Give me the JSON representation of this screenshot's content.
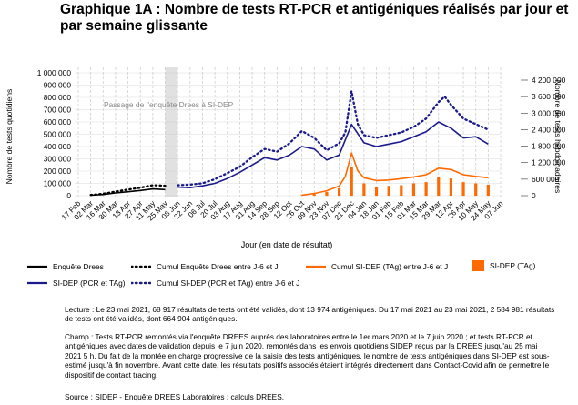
{
  "page_title": "Graphique 1A : Nombre de tests RT-PCR et antigéniques réalisés par jour et par semaine glissante",
  "chart_data": {
    "type": "line",
    "x_label": "Jour (en date de résultat)",
    "y_left_label": "Nombre de tests quotidiens",
    "y_right_label": "Nombre de tests hebdomadaires",
    "y_left_ticks": [
      "0",
      "100 000",
      "200 000",
      "300 000",
      "400 000",
      "500 000",
      "600 000",
      "700 000",
      "800 000",
      "900 000",
      "1 000 000"
    ],
    "y_left_range": [
      0,
      1000000
    ],
    "y_right_ticks": [
      "0",
      "600 000",
      "1 200 000",
      "1 800 000",
      "2 400 000",
      "3 000 000",
      "3 600 000",
      "4 200 000"
    ],
    "y_right_range": [
      0,
      4200000
    ],
    "x_tick_labels": [
      "17 Feb",
      "02 Mar",
      "16 Mar",
      "30 Mar",
      "13 Apr",
      "27 Apr",
      "11 May",
      "25 May",
      "08 Jun",
      "22 Jun",
      "06 Jul",
      "20 Jul",
      "03 Aug",
      "17 Aug",
      "31 Aug",
      "14 Sep",
      "28 Sep",
      "12 Oct",
      "26 Oct",
      "09 Nov",
      "23 Nov",
      "07 Dec",
      "21 Dec",
      "04 Jan",
      "18 Jan",
      "01 Feb",
      "15 Feb",
      "01 Mar",
      "15 Mar",
      "29 Mar",
      "12 Apr",
      "26 Apr",
      "10 May",
      "24 May",
      "07 Jun"
    ],
    "annotation": "Passage de l'enquête Drees à SI-DEP",
    "grid": true,
    "colors": {
      "enquete": "#000000",
      "sidep_total": "#1a1a8c",
      "sidep_tag": "#ff6a00",
      "annotation_band": "#c8c8c8"
    },
    "series": [
      {
        "name": "Enquête Drees",
        "axis": "left",
        "style": "solid",
        "color": "#000000",
        "x": [
          "02 Mar",
          "16 Mar",
          "30 Mar",
          "13 Apr",
          "27 Apr",
          "11 May",
          "25 May"
        ],
        "values": [
          4000,
          10000,
          22000,
          32000,
          42000,
          55000,
          50000
        ]
      },
      {
        "name": "Cumul Enquête Drees entre J-6 et J",
        "axis": "right",
        "style": "dotted",
        "color": "#000000",
        "x": [
          "02 Mar",
          "16 Mar",
          "30 Mar",
          "13 Apr",
          "27 Apr",
          "11 May",
          "25 May"
        ],
        "values": [
          25000,
          70000,
          150000,
          220000,
          290000,
          380000,
          360000
        ]
      },
      {
        "name": "SI-DEP (PCR et TAg)",
        "axis": "left",
        "style": "solid",
        "color": "#1a1a8c",
        "x": [
          "08 Jun",
          "22 Jun",
          "06 Jul",
          "20 Jul",
          "03 Aug",
          "17 Aug",
          "31 Aug",
          "14 Sep",
          "28 Sep",
          "12 Oct",
          "26 Oct",
          "09 Nov",
          "23 Nov",
          "07 Dec",
          "21 Dec",
          "04 Jan",
          "18 Jan",
          "01 Feb",
          "15 Feb",
          "01 Mar",
          "15 Mar",
          "29 Mar",
          "12 Apr",
          "26 Apr",
          "10 May",
          "24 May"
        ],
        "values": [
          70000,
          65000,
          80000,
          100000,
          140000,
          190000,
          250000,
          310000,
          290000,
          330000,
          400000,
          380000,
          290000,
          330000,
          580000,
          430000,
          400000,
          420000,
          440000,
          480000,
          520000,
          600000,
          550000,
          470000,
          480000,
          420000
        ]
      },
      {
        "name": "Cumul SI-DEP (PCR et TAg) entre J-6 et J",
        "axis": "right",
        "style": "dotted",
        "color": "#1a1a8c",
        "x": [
          "08 Jun",
          "22 Jun",
          "06 Jul",
          "20 Jul",
          "03 Aug",
          "17 Aug",
          "31 Aug",
          "14 Sep",
          "28 Sep",
          "12 Oct",
          "26 Oct",
          "09 Nov",
          "23 Nov",
          "07 Dec",
          "14 Dec",
          "21 Dec",
          "28 Dec",
          "04 Jan",
          "18 Jan",
          "01 Feb",
          "15 Feb",
          "01 Mar",
          "15 Mar",
          "29 Mar",
          "05 Apr",
          "12 Apr",
          "26 Apr",
          "10 May",
          "24 May"
        ],
        "values": [
          380000,
          400000,
          450000,
          600000,
          820000,
          1050000,
          1400000,
          1700000,
          1600000,
          1900000,
          2350000,
          2100000,
          1650000,
          1900000,
          2300000,
          3800000,
          2600000,
          2200000,
          2100000,
          2200000,
          2300000,
          2500000,
          2800000,
          3400000,
          3600000,
          3300000,
          2800000,
          2600000,
          2400000
        ]
      },
      {
        "name": "SI-DEP (TAg)",
        "axis": "left",
        "style": "bar",
        "color": "#ff6a00",
        "x": [
          "26 Oct",
          "09 Nov",
          "23 Nov",
          "07 Dec",
          "21 Dec",
          "04 Jan",
          "18 Jan",
          "01 Feb",
          "15 Feb",
          "01 Mar",
          "15 Mar",
          "29 Mar",
          "12 Apr",
          "26 Apr",
          "10 May",
          "24 May"
        ],
        "values": [
          4000,
          12000,
          30000,
          60000,
          230000,
          100000,
          70000,
          80000,
          85000,
          100000,
          110000,
          150000,
          140000,
          110000,
          100000,
          90000
        ]
      },
      {
        "name": "Cumul SI-DEP (TAg) entre J-6 et J",
        "axis": "right",
        "style": "solid",
        "color": "#ff6a00",
        "x": [
          "26 Oct",
          "09 Nov",
          "23 Nov",
          "07 Dec",
          "14 Dec",
          "21 Dec",
          "28 Dec",
          "04 Jan",
          "18 Jan",
          "01 Feb",
          "15 Feb",
          "01 Mar",
          "15 Mar",
          "29 Mar",
          "12 Apr",
          "26 Apr",
          "10 May",
          "24 May"
        ],
        "values": [
          20000,
          80000,
          180000,
          350000,
          700000,
          1550000,
          900000,
          650000,
          550000,
          570000,
          620000,
          680000,
          760000,
          1000000,
          950000,
          760000,
          700000,
          650000
        ]
      }
    ]
  },
  "legend": [
    {
      "key": "enquete",
      "label": "Enquête Drees"
    },
    {
      "key": "cumul_enquete",
      "label": "Cumul Enquête Drees entre J-6 et J"
    },
    {
      "key": "cumul_tag",
      "label": "Cumul SI-DEP (TAg) entre J-6 et J"
    },
    {
      "key": "tag",
      "label": "SI-DEP (TAg)"
    },
    {
      "key": "sidep",
      "label": "SI-DEP (PCR et TAg)"
    },
    {
      "key": "cumul_sidep",
      "label": "Cumul SI-DEP (PCR et TAg) entre J-6 et J"
    }
  ],
  "notes": {
    "lecture": "Lecture : Le 23 mai 2021, 68 917 résultats de tests ont été validés, dont 13 974 antigéniques. Du 17 mai 2021 au 23 mai 2021, 2 584 981 résultats de tests ont été validés, dont 664 904 antigéniques.",
    "champ": "Champ : Tests RT-PCR remontés via l'enquête DREES auprès des laboratoires entre le 1er mars 2020 et le 7 juin 2020 ; et tests RT-PCR et antigéniques avec dates de validation depuis le 7 juin 2020, remontés dans les envois quotidiens SIDEP reçus par la DREES jusqu'au 25 mai 2021 5 h. Du fait de la montée en charge progressive de la saisie des tests antigéniques, le nombre de tests antigéniques dans SI-DEP est sous-estimé jusqu'à fin novembre. Avant cette date, les résultats positifs associés étaient intégrés directement dans Contact-Covid afin de permettre le dispositif de contact tracing.",
    "source": "Source : SIDEP - Enquête DREES Laboratoires ; calculs DREES."
  }
}
